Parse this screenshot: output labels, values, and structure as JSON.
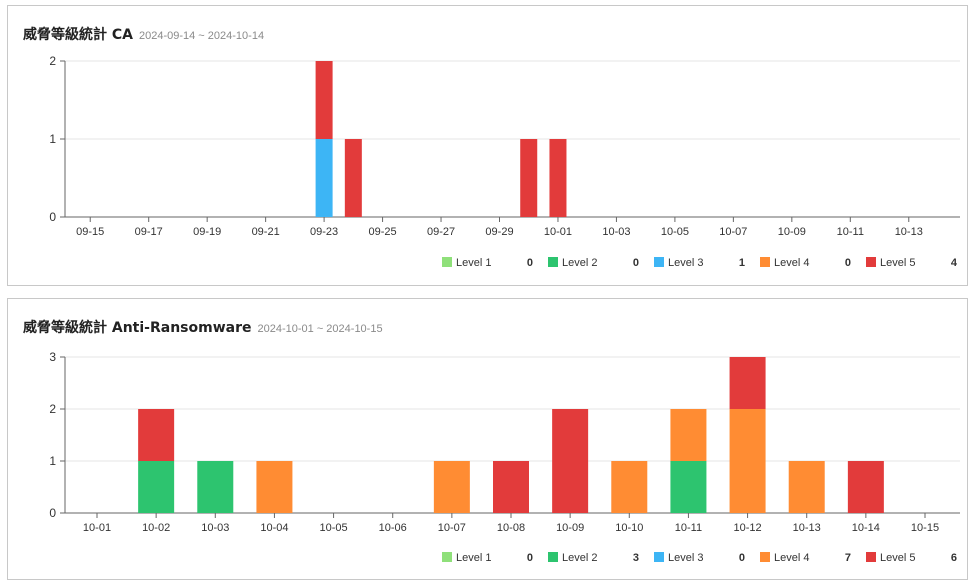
{
  "chart_data": [
    {
      "type": "bar",
      "stacked": true,
      "title": "威脅等級統計 CA",
      "subtitle": "2024-09-14 ~ 2024-10-14",
      "x_ticks": [
        "09-15",
        "09-17",
        "09-19",
        "09-21",
        "09-23",
        "09-25",
        "09-27",
        "09-29",
        "10-01",
        "10-03",
        "10-05",
        "10-07",
        "10-09",
        "10-11",
        "10-13"
      ],
      "dates": [
        "09-14",
        "09-15",
        "09-16",
        "09-17",
        "09-18",
        "09-19",
        "09-20",
        "09-21",
        "09-22",
        "09-23",
        "09-24",
        "09-25",
        "09-26",
        "09-27",
        "09-28",
        "09-29",
        "09-30",
        "10-01",
        "10-02",
        "10-03",
        "10-04",
        "10-05",
        "10-06",
        "10-07",
        "10-08",
        "10-09",
        "10-10",
        "10-11",
        "10-12",
        "10-13",
        "10-14"
      ],
      "ylim": [
        0,
        2
      ],
      "y_ticks": [
        0,
        1,
        2
      ],
      "grid": true,
      "legend_position": "bottom-right",
      "series": [
        {
          "name": "Level 1",
          "color": "#8fe07a",
          "total": "0",
          "points": []
        },
        {
          "name": "Level 2",
          "color": "#2dc46f",
          "total": "0",
          "points": []
        },
        {
          "name": "Level 3",
          "color": "#3db5f5",
          "total": "1",
          "points": [
            {
              "x": "09-23",
              "y": 1
            }
          ]
        },
        {
          "name": "Level 4",
          "color": "#ff8c33",
          "total": "0",
          "points": []
        },
        {
          "name": "Level 5",
          "color": "#e23b3b",
          "total": "4",
          "points": [
            {
              "x": "09-23",
              "y": 1
            },
            {
              "x": "09-24",
              "y": 1
            },
            {
              "x": "09-30",
              "y": 1
            },
            {
              "x": "10-01",
              "y": 1
            }
          ]
        }
      ]
    },
    {
      "type": "bar",
      "stacked": true,
      "title": "威脅等級統計 Anti-Ransomware",
      "subtitle": "2024-10-01 ~ 2024-10-15",
      "x_ticks": [
        "10-01",
        "10-02",
        "10-03",
        "10-04",
        "10-05",
        "10-06",
        "10-07",
        "10-08",
        "10-09",
        "10-10",
        "10-11",
        "10-12",
        "10-13",
        "10-14",
        "10-15"
      ],
      "dates": [
        "10-01",
        "10-02",
        "10-03",
        "10-04",
        "10-05",
        "10-06",
        "10-07",
        "10-08",
        "10-09",
        "10-10",
        "10-11",
        "10-12",
        "10-13",
        "10-14",
        "10-15"
      ],
      "ylim": [
        0,
        3
      ],
      "y_ticks": [
        0,
        1,
        2,
        3
      ],
      "grid": true,
      "legend_position": "bottom-right",
      "series": [
        {
          "name": "Level 1",
          "color": "#8fe07a",
          "total": "0",
          "points": []
        },
        {
          "name": "Level 2",
          "color": "#2dc46f",
          "total": "3",
          "points": [
            {
              "x": "10-02",
              "y": 1
            },
            {
              "x": "10-03",
              "y": 1
            },
            {
              "x": "10-11",
              "y": 1
            }
          ]
        },
        {
          "name": "Level 3",
          "color": "#3db5f5",
          "total": "0",
          "points": []
        },
        {
          "name": "Level 4",
          "color": "#ff8c33",
          "total": "7",
          "points": [
            {
              "x": "10-04",
              "y": 1
            },
            {
              "x": "10-07",
              "y": 1
            },
            {
              "x": "10-10",
              "y": 1
            },
            {
              "x": "10-11",
              "y": 1
            },
            {
              "x": "10-12",
              "y": 2
            },
            {
              "x": "10-13",
              "y": 1
            }
          ]
        },
        {
          "name": "Level 5",
          "color": "#e23b3b",
          "total": "6",
          "points": [
            {
              "x": "10-02",
              "y": 1
            },
            {
              "x": "10-08",
              "y": 1
            },
            {
              "x": "10-09",
              "y": 2
            },
            {
              "x": "10-12",
              "y": 1
            },
            {
              "x": "10-14",
              "y": 1
            }
          ]
        }
      ]
    }
  ]
}
